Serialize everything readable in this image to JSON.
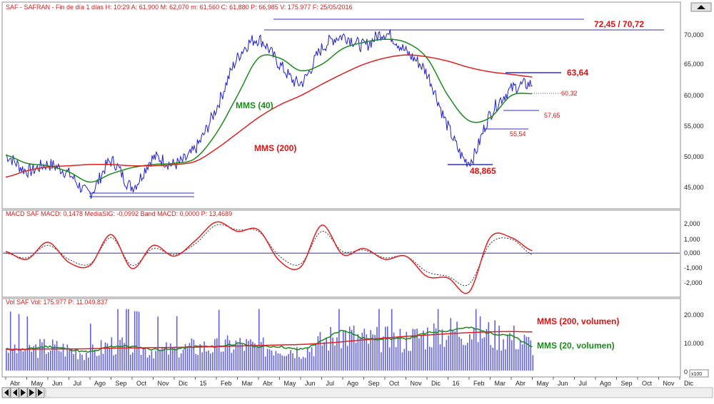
{
  "chart_data": [
    {
      "type": "line",
      "panel": "price",
      "header": "SAF - SAFRAN - Fin de día 1 días H: 10:29 A: 61,900 M: 62,070 m: 61,560 C: 61,880 P: 66,985 V: 175.977 F: 25/05/2016",
      "y_ticks": [
        "70,000",
        "65,000",
        "60,000",
        "55,000",
        "50,000",
        "45,000"
      ],
      "ylim": [
        42.5,
        73.0
      ],
      "series": [
        {
          "name": "MMS (40)",
          "color": "#1a8a1a"
        },
        {
          "name": "MMS (200)",
          "color": "#e02020"
        }
      ],
      "price_color": "#2020d0",
      "x": [
        "2014-04",
        "2014-05",
        "2014-06",
        "2014-07",
        "2014-08",
        "2014-09",
        "2014-10",
        "2014-11",
        "2014-12",
        "2015-01",
        "2015-02",
        "2015-03",
        "2015-04",
        "2015-05",
        "2015-06",
        "2015-07",
        "2015-08",
        "2015-09",
        "2015-10",
        "2015-11",
        "2015-12",
        "2016-01",
        "2016-02",
        "2016-03",
        "2016-04",
        "2016-05"
      ],
      "close": [
        50.5,
        48.0,
        49.0,
        47.5,
        44.5,
        49.5,
        45.5,
        50.0,
        49.0,
        51.5,
        58.0,
        66.0,
        69.0,
        65.0,
        62.0,
        67.5,
        69.5,
        68.0,
        70.0,
        67.0,
        63.5,
        55.0,
        49.5,
        57.0,
        61.0,
        61.88
      ],
      "sma40": [
        50.5,
        49.2,
        48.8,
        47.8,
        46.2,
        47.5,
        48.5,
        49.0,
        49.2,
        50.0,
        54.0,
        60.0,
        66.0,
        66.0,
        64.0,
        65.0,
        67.5,
        68.5,
        69.0,
        68.5,
        66.0,
        60.0,
        56.0,
        56.5,
        60.0,
        60.32
      ],
      "sma200": [
        47.0,
        48.0,
        48.6,
        48.8,
        49.0,
        49.0,
        48.8,
        48.8,
        49.0,
        49.5,
        51.5,
        54.0,
        56.5,
        58.5,
        60.0,
        61.8,
        63.5,
        65.0,
        66.0,
        66.5,
        66.2,
        65.5,
        64.5,
        63.8,
        63.4,
        63.0
      ],
      "annotations": [
        "72,45 / 70,72",
        "63,64",
        "60,32",
        "57,65",
        "55,54",
        "48,865",
        "MMS (40)",
        "MMS (200)"
      ]
    },
    {
      "type": "line",
      "panel": "macd",
      "header": "MACD SAF MACD: 0,1478 MediaSIG: -0,0992 Band MACD: 0,0000 P: 13,4689",
      "y_ticks": [
        "2,000",
        "1,000",
        "0,000",
        "-1,000",
        "-2,000"
      ],
      "ylim": [
        -2.6,
        2.3
      ],
      "x": [
        "2014-04",
        "2014-05",
        "2014-06",
        "2014-07",
        "2014-08",
        "2014-09",
        "2014-10",
        "2014-11",
        "2014-12",
        "2015-01",
        "2015-02",
        "2015-03",
        "2015-04",
        "2015-05",
        "2015-06",
        "2015-07",
        "2015-08",
        "2015-09",
        "2015-10",
        "2015-11",
        "2015-12",
        "2016-01",
        "2016-02",
        "2016-03",
        "2016-04",
        "2016-05"
      ],
      "macd": [
        0.1,
        -0.4,
        0.7,
        -0.6,
        -0.8,
        1.2,
        -1.0,
        0.5,
        -0.2,
        0.8,
        2.0,
        1.4,
        1.5,
        -0.5,
        -0.9,
        1.8,
        -0.1,
        0.3,
        -0.4,
        -0.2,
        -1.5,
        -1.6,
        -2.5,
        1.0,
        1.0,
        0.15
      ],
      "signal": [
        0.0,
        -0.3,
        0.5,
        -0.4,
        -0.7,
        1.0,
        -0.8,
        0.3,
        -0.1,
        0.6,
        1.8,
        1.5,
        1.4,
        -0.2,
        -0.7,
        1.4,
        0.1,
        0.2,
        -0.3,
        -0.2,
        -1.2,
        -1.5,
        -2.0,
        0.6,
        0.9,
        -0.1
      ],
      "macd_color": "#e02020",
      "signal_color": "#333333"
    },
    {
      "type": "bar",
      "panel": "volume",
      "header": "Vol SAF Vol: 175.977 P: 11.049.837",
      "y_ticks": [
        "20.000",
        "10.000",
        "0"
      ],
      "y_unit": "x100",
      "ylim": [
        -1,
        24
      ],
      "x": [
        "2014-04",
        "2014-05",
        "2014-06",
        "2014-07",
        "2014-08",
        "2014-09",
        "2014-10",
        "2014-11",
        "2014-12",
        "2015-01",
        "2015-02",
        "2015-03",
        "2015-04",
        "2015-05",
        "2015-06",
        "2015-07",
        "2015-08",
        "2015-09",
        "2015-10",
        "2015-11",
        "2015-12",
        "2016-01",
        "2016-02",
        "2016-03",
        "2016-04",
        "2016-05"
      ],
      "volume": [
        9,
        8,
        9,
        8,
        7,
        10,
        9,
        8,
        8,
        9,
        9,
        10,
        9,
        9,
        8,
        11,
        14,
        12,
        12,
        12,
        14,
        15,
        16,
        14,
        13,
        10
      ],
      "vol_sma200": [
        8.0,
        8.0,
        8.1,
        8.1,
        8.2,
        8.4,
        8.5,
        8.6,
        8.7,
        8.8,
        9.0,
        9.2,
        9.4,
        9.6,
        9.8,
        10.2,
        10.8,
        11.5,
        12.2,
        12.8,
        13.3,
        13.8,
        14.2,
        14.5,
        14.6,
        14.5
      ],
      "vol_sma20": [
        8,
        8,
        9,
        8,
        7,
        9,
        9,
        8,
        8,
        9,
        9,
        10,
        9,
        9,
        8,
        11,
        15,
        12,
        12,
        12,
        14,
        15,
        16,
        14,
        13,
        9
      ],
      "series": [
        {
          "name": "MMS (200, volumen)",
          "color": "#e02020"
        },
        {
          "name": "MMS (20, volumen)",
          "color": "#1a8a1a"
        }
      ],
      "bar_color": "#6060e0"
    }
  ],
  "x_axis": {
    "labels": [
      "Abr",
      "May",
      "Jun",
      "Jul",
      "Ago",
      "Sep",
      "Oct",
      "Nov",
      "Dic",
      "15",
      "Feb",
      "Mar",
      "Abr",
      "May",
      "Jun",
      "Jul",
      "Ago",
      "Sep",
      "Oct",
      "Nov",
      "Dic",
      "16",
      "Feb",
      "Mar",
      "Abr",
      "May",
      "Jun",
      "Jul",
      "Ago",
      "Sep",
      "Oct",
      "Nov",
      "Dic"
    ]
  },
  "nav": {
    "icons": [
      "first-icon",
      "prev-icon",
      "play-icon",
      "next-icon",
      "last-icon"
    ]
  },
  "scroll": {
    "top_icon": "scroll-up-icon"
  },
  "colors": {
    "frame": "#8f8f8f",
    "level": "#3030c0",
    "label_red": "#e01010",
    "grid": "#cfcfcf"
  }
}
